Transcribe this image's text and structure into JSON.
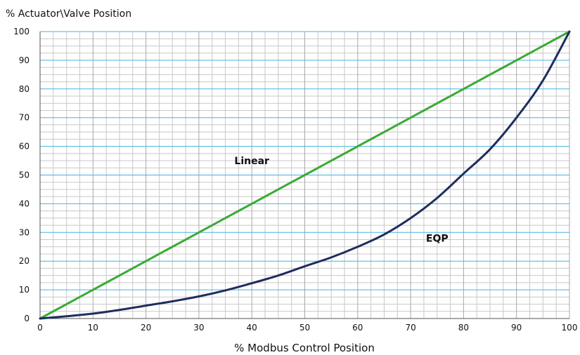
{
  "chart_data": {
    "type": "line",
    "title": "",
    "xlabel": "% Modbus Control Position",
    "ylabel": "% Actuator\\Valve Position",
    "xlim": [
      0,
      100
    ],
    "ylim": [
      0,
      100
    ],
    "xticks": [
      0,
      10,
      20,
      30,
      40,
      50,
      60,
      70,
      80,
      90,
      100
    ],
    "yticks": [
      0,
      10,
      20,
      30,
      40,
      50,
      60,
      70,
      80,
      90,
      100
    ],
    "grid": true,
    "grid_minor_x": 2.5,
    "grid_minor_y": 2.5,
    "x": [
      0,
      5,
      10,
      15,
      20,
      25,
      30,
      35,
      40,
      45,
      50,
      55,
      60,
      65,
      70,
      75,
      80,
      85,
      90,
      95,
      100
    ],
    "series": [
      {
        "name": "Linear",
        "color": "#3aaa35",
        "values": [
          0,
          5,
          10,
          15,
          20,
          25,
          30,
          35,
          40,
          45,
          50,
          55,
          60,
          65,
          70,
          75,
          80,
          85,
          90,
          95,
          100
        ],
        "label_at": [
          40,
          55
        ]
      },
      {
        "name": "EQP",
        "color": "#1f2d5e",
        "values": [
          0,
          0.8,
          1.7,
          3.0,
          4.5,
          6.0,
          7.7,
          9.8,
          12.3,
          15.0,
          18.2,
          21.3,
          25.0,
          29.3,
          35.0,
          42.0,
          50.5,
          59.0,
          70.0,
          83.0,
          100
        ],
        "label_at": [
          75,
          28
        ]
      }
    ],
    "colors": {
      "grid_major_vertical": "#a8a8a8",
      "grid_major_horizontal": "#47b2e3",
      "grid_minor": "#c8c8c8",
      "axis": "#555555"
    }
  }
}
